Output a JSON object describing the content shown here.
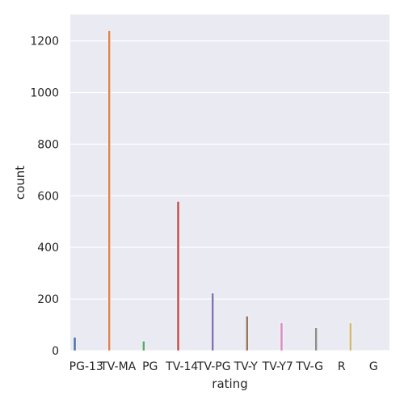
{
  "chart_data": {
    "type": "bar",
    "xlabel": "rating",
    "ylabel": "count",
    "categories": [
      "PG-13",
      "TV-MA",
      "PG",
      "TV-14",
      "TV-PG",
      "TV-Y",
      "TV-Y7",
      "TV-G",
      "R",
      "G"
    ],
    "values": [
      52,
      1240,
      37,
      578,
      223,
      134,
      108,
      89,
      108,
      2
    ],
    "colors": [
      "#4c72b0",
      "#dd8452",
      "#55a868",
      "#c44e52",
      "#8172b3",
      "#937860",
      "#da8bc3",
      "#8c8c8c",
      "#ccb974",
      "#64b5cd"
    ],
    "yticks": [
      0,
      200,
      400,
      600,
      800,
      1000,
      1200
    ],
    "ylim": [
      0,
      1302
    ],
    "grid": true,
    "style": "seaborn-darkgrid"
  }
}
